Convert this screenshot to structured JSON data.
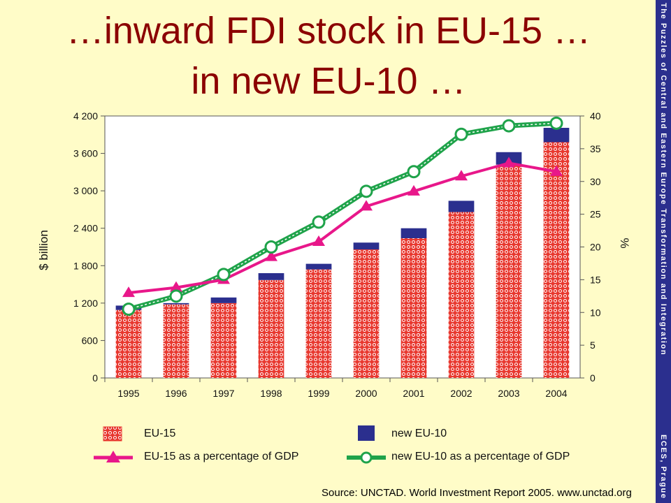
{
  "slide": {
    "title_line1": "…inward FDI stock in EU-15 …",
    "title_line2": "in new EU-10 …",
    "side_label_top": "The Puzzles of Central and Eastern Europe Transformation and Integration",
    "side_label_bottom": "ECES, Prague",
    "source": "Source: UNCTAD. World Investment Report 2005. www.unctad.org"
  },
  "colors": {
    "title": "#8B0000",
    "background": "#FFFCC8",
    "side_bar": "#2B2F8E",
    "eu15_bar": "#E8382F",
    "eu15_pattern": "#FFFFFF",
    "new_eu10_bar": "#2B2F8E",
    "eu15_gdp_line": "#E8178A",
    "new_eu10_gdp_line": "#1FA34A"
  },
  "chart_data": {
    "type": "bar",
    "categories": [
      "1995",
      "1996",
      "1997",
      "1998",
      "1999",
      "2000",
      "2001",
      "2002",
      "2003",
      "2004"
    ],
    "ylabel": "$ billion",
    "y2label": "%",
    "ylim": [
      0,
      4200
    ],
    "y2lim": [
      0,
      40
    ],
    "y_ticks": [
      "0",
      "600",
      "1 200",
      "1 800",
      "2 400",
      "3 000",
      "3 600",
      "4 200"
    ],
    "y2_ticks": [
      "0",
      "5",
      "10",
      "15",
      "20",
      "25",
      "30",
      "35",
      "40"
    ],
    "grid": false,
    "legend_position": "bottom",
    "series": [
      {
        "name": "EU-15",
        "kind": "stacked-bar",
        "values": [
          1090,
          1180,
          1200,
          1570,
          1740,
          2060,
          2240,
          2660,
          3420,
          3780
        ]
      },
      {
        "name": "new EU-10",
        "kind": "stacked-bar",
        "values": [
          70,
          20,
          90,
          110,
          90,
          110,
          160,
          180,
          200,
          230
        ]
      },
      {
        "name": "EU-15 as a percentage of GDP",
        "kind": "line",
        "axis": "right",
        "values": [
          13,
          13.8,
          15,
          18.5,
          20.8,
          26.2,
          28.5,
          30.8,
          32.8,
          31.5
        ]
      },
      {
        "name": "new EU-10 as a percentage of GDP",
        "kind": "line",
        "axis": "right",
        "values": [
          10.5,
          12.5,
          15.8,
          20,
          23.8,
          28.5,
          31.5,
          37.2,
          38.5,
          38.9
        ]
      }
    ]
  }
}
